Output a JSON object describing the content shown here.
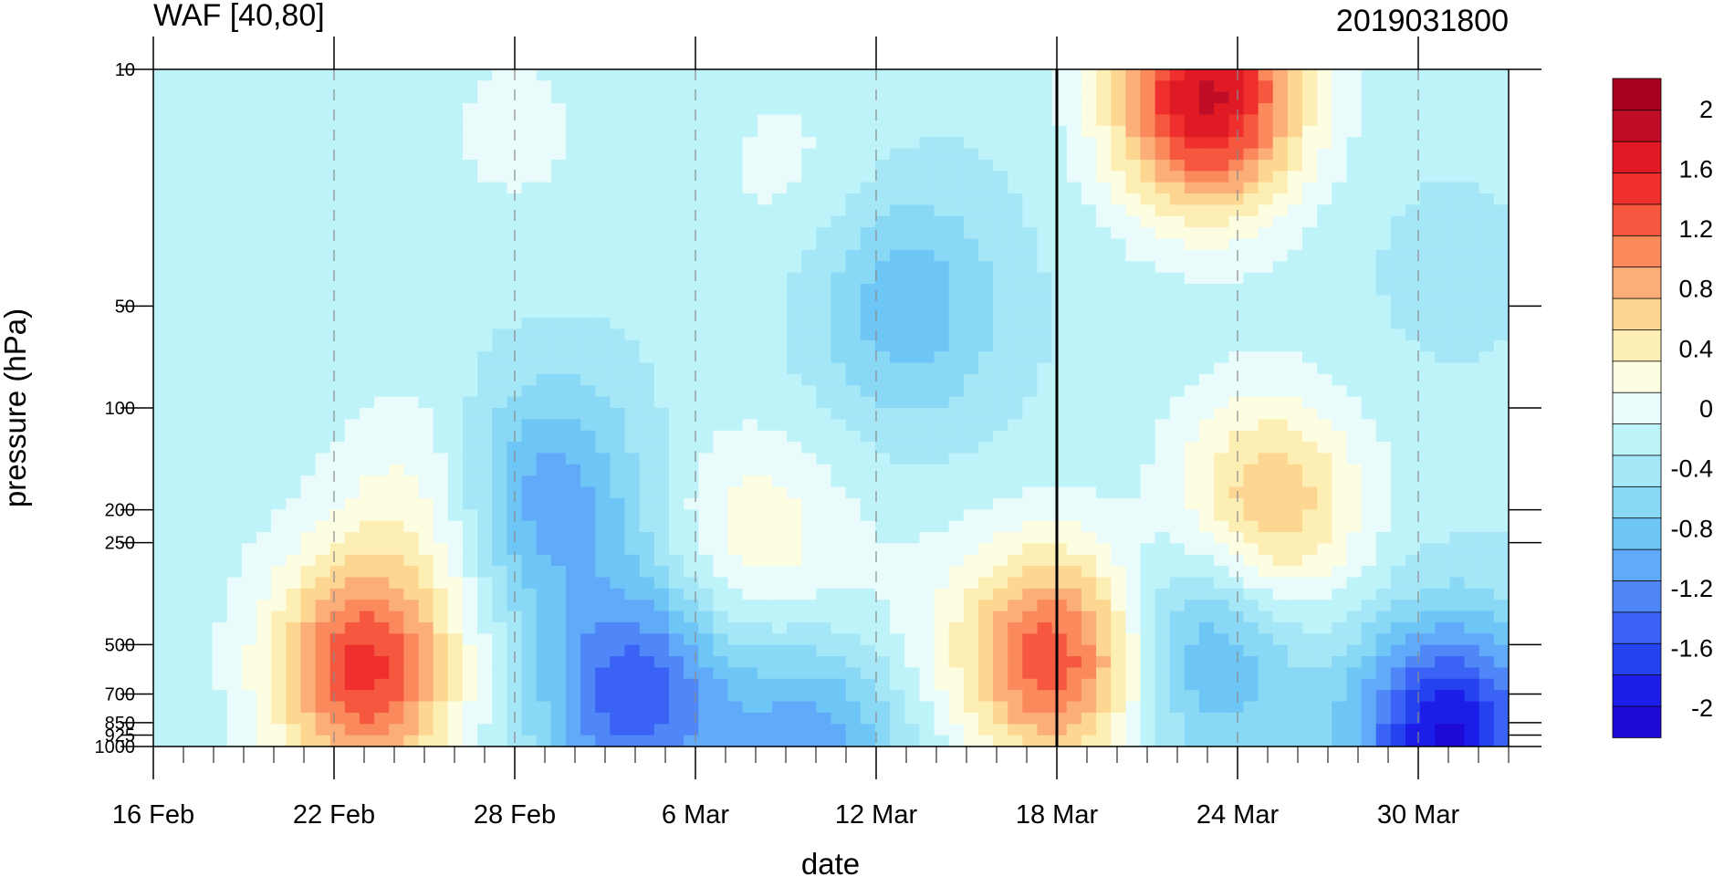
{
  "chart_data": {
    "type": "heatmap",
    "title": "WAF [40,80]",
    "subtitle": "2019031800",
    "xlabel": "date",
    "ylabel": "pressure (hPa)",
    "x_ticks": [
      "16 Feb",
      "22 Feb",
      "28 Feb",
      "6 Mar",
      "12 Mar",
      "18 Mar",
      "24 Mar",
      "30 Mar"
    ],
    "x_range": [
      "2019-02-16",
      "2019-04-02"
    ],
    "y_ticks": [
      10,
      50,
      100,
      200,
      250,
      500,
      700,
      850,
      925,
      1000
    ],
    "y_scale": "log",
    "y_range": [
      1000,
      10
    ],
    "marker_date": "2019-03-18",
    "dashed_gridlines_at": [
      "22 Feb",
      "28 Feb",
      "6 Mar",
      "12 Mar",
      "24 Mar",
      "30 Mar"
    ],
    "colorbar": {
      "levels": [
        -2.2,
        -2.0,
        -1.8,
        -1.6,
        -1.4,
        -1.2,
        -1.0,
        -0.8,
        -0.6,
        -0.4,
        -0.2,
        0.0,
        0.2,
        0.4,
        0.6,
        0.8,
        1.0,
        1.2,
        1.4,
        1.6,
        1.8,
        2.0,
        2.2
      ],
      "labels": [
        "2",
        "1.6",
        "1.2",
        "0.8",
        "0.4",
        "0",
        "-0.4",
        "-0.8",
        "-1.2",
        "-1.6",
        "-2"
      ],
      "label_values": [
        2.0,
        1.6,
        1.2,
        0.8,
        0.4,
        0.0,
        -0.4,
        -0.8,
        -1.2,
        -1.6,
        -2.0
      ],
      "colors": [
        "#1e0ad6",
        "#1c1de8",
        "#2442f0",
        "#3a62f4",
        "#4f86f8",
        "#61aaf9",
        "#6ec6f7",
        "#88d8f6",
        "#a5e6f7",
        "#bdf3f9",
        "#e9fcfb",
        "#fdfde2",
        "#fdefb4",
        "#fdd692",
        "#fcae78",
        "#fa8a5c",
        "#f5583e",
        "#ee2f2d",
        "#df1a24",
        "#bf0d28",
        "#a5011f"
      ]
    },
    "features": [
      {
        "date": "2019-02-23",
        "p": 600,
        "value": 1.6
      },
      {
        "date": "2019-03-18",
        "p": 550,
        "value": 1.5
      },
      {
        "date": "2019-03-23",
        "p": 12,
        "value": 2.0
      },
      {
        "date": "2019-03-25",
        "p": 200,
        "value": 1.0
      },
      {
        "date": "2019-02-25",
        "p": 180,
        "value": 0.4
      },
      {
        "date": "2019-02-28",
        "p": 15,
        "value": 0.2
      },
      {
        "date": "2019-03-08",
        "p": 250,
        "value": 0.5
      },
      {
        "date": "2019-03-01",
        "p": 180,
        "value": -0.8
      },
      {
        "date": "2019-03-04",
        "p": 700,
        "value": -1.2
      },
      {
        "date": "2019-03-10",
        "p": 950,
        "value": -0.8
      },
      {
        "date": "2019-03-13",
        "p": 50,
        "value": -0.6
      },
      {
        "date": "2019-03-23",
        "p": 500,
        "value": -0.8
      },
      {
        "date": "2019-03-31",
        "p": 950,
        "value": -1.7
      },
      {
        "date": "2019-03-09",
        "p": 20,
        "value": 0.2
      },
      {
        "date": "2019-03-13",
        "p": 500,
        "value": 0.2
      },
      {
        "date": "2019-02-16",
        "p": 200,
        "value": 0.1
      },
      {
        "date": "2019-03-31",
        "p": 40,
        "value": -0.1
      }
    ]
  }
}
